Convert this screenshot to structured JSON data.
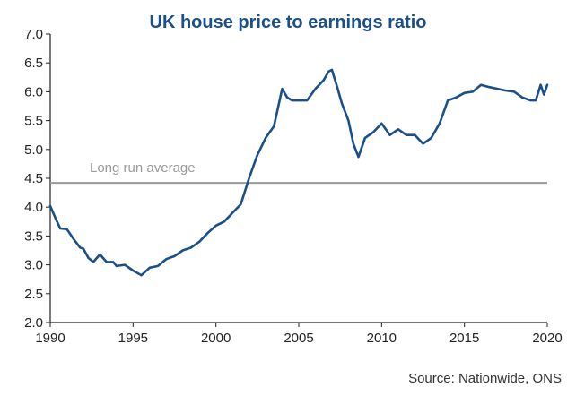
{
  "chart_data": {
    "type": "line",
    "title": "UK house price to earnings ratio",
    "source": "Source: Nationwide, ONS",
    "xlabel": "",
    "ylabel": "",
    "xlim": [
      1990,
      2020
    ],
    "ylim": [
      2.0,
      7.0
    ],
    "x_ticks": [
      1990,
      1995,
      2000,
      2005,
      2010,
      2015,
      2020
    ],
    "y_ticks": [
      "2.0",
      "2.5",
      "3.0",
      "3.5",
      "4.0",
      "4.5",
      "5.0",
      "5.5",
      "6.0",
      "6.5",
      "7.0"
    ],
    "grid": false,
    "line_color": "#1a4f8a",
    "reference_line": {
      "label": "Long run average",
      "value": 4.42,
      "color": "#999999"
    },
    "series": [
      {
        "x": [
          1990.0,
          1990.3,
          1990.6,
          1991.0,
          1991.4,
          1991.8,
          1992.0,
          1992.3,
          1992.6,
          1993.0,
          1993.4,
          1993.8,
          1994.0,
          1994.5,
          1995.0,
          1995.5,
          1996.0,
          1996.5,
          1997.0,
          1997.5,
          1998.0,
          1998.5,
          1999.0,
          1999.5,
          2000.0,
          2000.5,
          2001.0,
          2001.5,
          2002.0,
          2002.5,
          2003.0,
          2003.5,
          2004.0,
          2004.3,
          2004.6,
          2005.0,
          2005.5,
          2006.0,
          2006.5,
          2006.8,
          2007.0,
          2007.3,
          2007.6,
          2008.0,
          2008.3,
          2008.6,
          2009.0,
          2009.5,
          2010.0,
          2010.5,
          2011.0,
          2011.5,
          2012.0,
          2012.5,
          2013.0,
          2013.5,
          2014.0,
          2014.5,
          2015.0,
          2015.5,
          2016.0,
          2016.5,
          2017.0,
          2017.5,
          2018.0,
          2018.5,
          2019.0,
          2019.3,
          2019.6,
          2019.8,
          2020.0
        ],
        "y": [
          4.02,
          3.82,
          3.63,
          3.62,
          3.45,
          3.3,
          3.28,
          3.12,
          3.05,
          3.18,
          3.05,
          3.05,
          2.98,
          3.0,
          2.9,
          2.82,
          2.95,
          2.98,
          3.1,
          3.15,
          3.25,
          3.3,
          3.4,
          3.55,
          3.68,
          3.75,
          3.9,
          4.05,
          4.5,
          4.9,
          5.2,
          5.4,
          6.05,
          5.9,
          5.85,
          5.85,
          5.85,
          6.05,
          6.2,
          6.35,
          6.38,
          6.1,
          5.8,
          5.5,
          5.1,
          4.87,
          5.2,
          5.3,
          5.45,
          5.25,
          5.35,
          5.25,
          5.25,
          5.1,
          5.2,
          5.45,
          5.85,
          5.9,
          5.98,
          6.0,
          6.12,
          6.08,
          6.05,
          6.02,
          6.0,
          5.9,
          5.85,
          5.85,
          6.12,
          5.95,
          6.12
        ]
      }
    ]
  }
}
